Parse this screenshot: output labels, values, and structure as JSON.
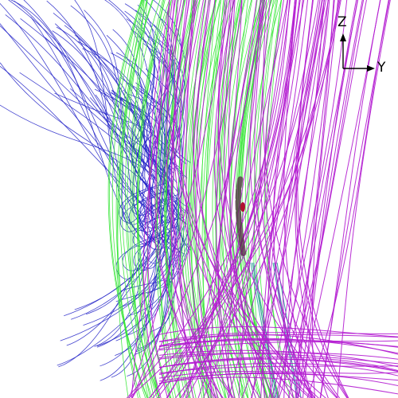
{
  "figure": {
    "background": "#ffffff",
    "streamline_colors": {
      "blue": "#2323c8",
      "green": "#33e633",
      "magenta": "#b21ad0",
      "dark_core": "#5a2a4a",
      "red_core": "#b01030",
      "teal": "#2a9a9a"
    }
  },
  "axes": {
    "z_label": "Z",
    "y_label": "Y",
    "icon": "axis-triad-icon"
  }
}
